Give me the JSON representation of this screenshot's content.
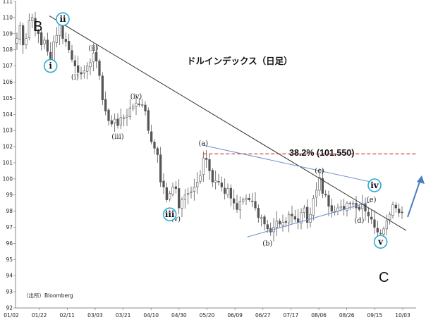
{
  "chart_data": {
    "type": "candlestick",
    "title": "ドルインデックス（日足）",
    "source": "（出所）Bloomberg",
    "ylim": [
      92,
      111
    ],
    "yticks": [
      92,
      93,
      94,
      95,
      96,
      97,
      98,
      99,
      100,
      101,
      102,
      103,
      104,
      105,
      106,
      107,
      108,
      109,
      110,
      111
    ],
    "xticks": [
      "01/02",
      "01/22",
      "02/11",
      "03/03",
      "03/21",
      "04/10",
      "04/30",
      "05/20",
      "06/09",
      "06/27",
      "07/17",
      "08/06",
      "08/26",
      "09/15",
      "10/03"
    ],
    "grid": false,
    "colors": {
      "candles": "#555555",
      "trendline": "#333333",
      "triangle": "#6d93c8",
      "retracement": "#d83a3a",
      "circle": "#2aa9d8",
      "arrow": "#4a7cc0"
    },
    "series": [
      {
        "values": [
          108.7,
          109.5,
          108.3,
          108.7,
          109.8,
          110.0,
          109.2,
          109.0,
          108.3,
          108.6,
          107.9,
          107.3,
          108.5,
          108.9,
          109.6,
          108.7,
          108.5,
          108.0,
          107.4,
          107.0,
          106.6,
          106.5,
          106.7,
          107.0,
          107.2,
          107.8,
          107.3,
          106.4,
          104.9,
          104.2,
          103.6,
          103.4,
          103.7,
          103.3,
          103.8,
          103.8,
          103.9,
          104.4,
          104.5,
          104.7,
          104.6,
          104.6,
          104.2,
          103.0,
          102.3,
          101.9,
          101.5,
          99.8,
          99.5,
          98.7,
          99.1,
          99.5,
          99.4,
          98.2,
          98.7,
          99.0,
          99.1,
          99.2,
          99.5,
          99.8,
          100.2,
          101.3,
          101.2,
          100.5,
          99.8,
          99.9,
          99.8,
          99.5,
          99.1,
          99.4,
          98.8,
          98.5,
          98.1,
          98.6,
          98.7,
          98.8,
          98.7,
          98.6,
          98.2,
          97.6,
          97.6,
          97.2,
          96.9,
          96.7,
          97.0,
          97.4,
          97.2,
          97.3,
          97.3,
          97.8,
          97.7,
          97.5,
          97.3,
          97.9,
          98.2,
          97.3,
          97.8,
          98.8,
          99.3,
          100.1,
          99.1,
          99.0,
          98.3,
          98.0,
          98.0,
          98.2,
          98.3,
          98.1,
          98.5,
          98.5,
          98.5,
          98.2,
          98.1,
          98.4,
          98.0,
          97.7,
          97.5,
          97.0,
          96.7,
          96.6,
          96.9,
          97.4,
          97.8,
          98.4,
          98.2,
          97.9,
          97.9
        ]
      }
    ],
    "annotations": {
      "trend_start": "B",
      "trend_end": "C",
      "retracement": "38.2% (101.550)",
      "retracement_value": 101.55,
      "sub_waves": [
        {
          "label": "(ii)",
          "index": 25,
          "value": 107.8,
          "place": "above"
        },
        {
          "label": "(i)",
          "index": 19,
          "value": 106.7,
          "place": "below"
        },
        {
          "label": "(iii)",
          "index": 33,
          "value": 103.0,
          "place": "below"
        },
        {
          "label": "(iv)",
          "index": 39,
          "value": 104.8,
          "place": "above"
        },
        {
          "label": "(v)",
          "index": 52,
          "value": 97.9,
          "place": "below"
        },
        {
          "label": "(a)",
          "index": 61,
          "value": 101.9,
          "place": "above"
        },
        {
          "label": "(b)",
          "index": 82,
          "value": 96.4,
          "place": "below"
        },
        {
          "label": "(c)",
          "index": 99,
          "value": 100.2,
          "place": "above"
        },
        {
          "label": "(d)",
          "index": 112,
          "value": 97.8,
          "place": "below"
        },
        {
          "label": "(e)",
          "index": 116,
          "value": 98.4,
          "place": "above"
        }
      ],
      "circle_waves": [
        {
          "label": "i",
          "index": 11,
          "value": 107.0
        },
        {
          "label": "ii",
          "index": 15,
          "value": 109.9
        },
        {
          "label": "iii",
          "index": 50,
          "value": 97.8
        },
        {
          "label": "iv",
          "index": 117,
          "value": 99.6
        },
        {
          "label": "v",
          "index": 119,
          "value": 96.1
        }
      ]
    }
  }
}
